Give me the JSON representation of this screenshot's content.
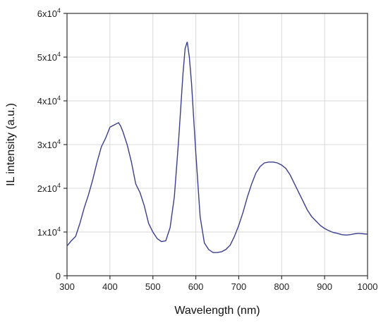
{
  "chart_data": {
    "type": "line",
    "xlabel": "Wavelength (nm)",
    "ylabel": "IL intensity (a.u.)",
    "xlim": [
      300,
      1000
    ],
    "ylim": [
      0,
      60000
    ],
    "x_ticks": [
      300,
      400,
      500,
      600,
      700,
      800,
      900,
      1000
    ],
    "x_tick_labels": [
      "300",
      "400",
      "500",
      "600",
      "700",
      "800",
      "900",
      "1000"
    ],
    "y_ticks": [
      0,
      10000,
      20000,
      30000,
      40000,
      50000,
      60000
    ],
    "y_tick_labels": [
      {
        "base": "0",
        "exp": ""
      },
      {
        "base": "1x10",
        "exp": "4"
      },
      {
        "base": "2x10",
        "exp": "4"
      },
      {
        "base": "3x10",
        "exp": "4"
      },
      {
        "base": "4x10",
        "exp": "4"
      },
      {
        "base": "5x10",
        "exp": "4"
      },
      {
        "base": "6x10",
        "exp": "4"
      }
    ],
    "grid": true,
    "line_color": "#3a3f8f",
    "series": [
      {
        "x": [
          300,
          310,
          320,
          330,
          340,
          350,
          360,
          370,
          380,
          390,
          400,
          410,
          420,
          425,
          430,
          440,
          450,
          460,
          470,
          480,
          490,
          500,
          510,
          520,
          530,
          540,
          550,
          560,
          570,
          575,
          580,
          585,
          590,
          600,
          610,
          620,
          630,
          640,
          650,
          660,
          670,
          680,
          690,
          700,
          710,
          720,
          730,
          740,
          750,
          760,
          770,
          780,
          790,
          800,
          810,
          820,
          830,
          840,
          850,
          860,
          870,
          880,
          890,
          900,
          910,
          920,
          930,
          940,
          950,
          960,
          970,
          980,
          990,
          1000
        ],
        "y": [
          6800,
          8000,
          9000,
          12000,
          15500,
          18500,
          22000,
          26000,
          29500,
          31500,
          34000,
          34500,
          35000,
          34200,
          33000,
          30000,
          26000,
          21000,
          19000,
          16000,
          12000,
          10000,
          8500,
          7800,
          8000,
          11000,
          18000,
          31000,
          46000,
          52000,
          53500,
          50000,
          44000,
          28000,
          13500,
          7500,
          6000,
          5300,
          5300,
          5500,
          6000,
          7000,
          9000,
          11500,
          14500,
          18000,
          21000,
          23500,
          25000,
          25800,
          26000,
          26000,
          25800,
          25300,
          24500,
          23000,
          21000,
          19000,
          17000,
          15000,
          13500,
          12500,
          11500,
          10800,
          10300,
          9900,
          9700,
          9400,
          9300,
          9400,
          9600,
          9700,
          9600,
          9500
        ]
      }
    ]
  }
}
